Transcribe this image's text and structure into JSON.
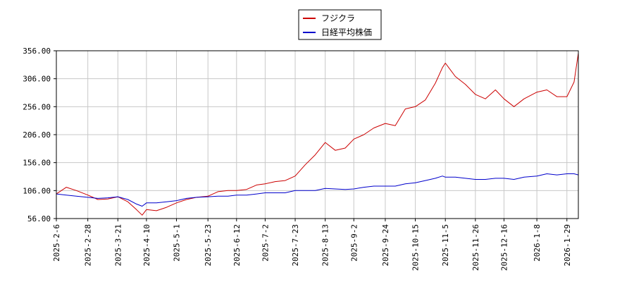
{
  "chart_data": {
    "type": "line",
    "title": "",
    "xlabel": "",
    "ylabel": "",
    "grid": true,
    "legend_position": "top-center",
    "x_ticks": [
      "2025-2-6",
      "2025-2-28",
      "2025-3-21",
      "2025-4-10",
      "2025-5-1",
      "2025-5-23",
      "2025-6-12",
      "2025-7-2",
      "2025-7-23",
      "2025-8-13",
      "2025-9-2",
      "2025-9-24",
      "2025-10-15",
      "2025-11-5",
      "2025-11-26",
      "2025-12-16",
      "2026-1-8",
      "2026-1-29"
    ],
    "y_ticks": [
      "356.00",
      "306.00",
      "256.00",
      "206.00",
      "156.00",
      "106.00",
      "56.00"
    ],
    "ylim": [
      56,
      356
    ],
    "x": [
      "2025-2-6",
      "2025-2-13",
      "2025-2-20",
      "2025-2-28",
      "2025-3-7",
      "2025-3-14",
      "2025-3-21",
      "2025-3-28",
      "2025-4-3",
      "2025-4-7",
      "2025-4-10",
      "2025-4-17",
      "2025-4-24",
      "2025-5-1",
      "2025-5-8",
      "2025-5-15",
      "2025-5-23",
      "2025-5-30",
      "2025-6-6",
      "2025-6-12",
      "2025-6-19",
      "2025-6-26",
      "2025-7-2",
      "2025-7-9",
      "2025-7-16",
      "2025-7-23",
      "2025-7-30",
      "2025-8-6",
      "2025-8-13",
      "2025-8-20",
      "2025-8-27",
      "2025-9-2",
      "2025-9-9",
      "2025-9-16",
      "2025-9-24",
      "2025-10-1",
      "2025-10-8",
      "2025-10-15",
      "2025-10-22",
      "2025-10-29",
      "2025-11-3",
      "2025-11-5",
      "2025-11-12",
      "2025-11-19",
      "2025-11-26",
      "2025-12-3",
      "2025-12-10",
      "2025-12-16",
      "2025-12-23",
      "2025-12-30",
      "2026-1-8",
      "2026-1-15",
      "2026-1-22",
      "2026-1-29",
      "2026-2-3",
      "2026-2-6"
    ],
    "series": [
      {
        "name": "フジクラ",
        "color": "#cc0000",
        "values": [
          100,
          112,
          106,
          98,
          90,
          91,
          95,
          86,
          72,
          62,
          72,
          70,
          76,
          84,
          90,
          94,
          96,
          104,
          106,
          106,
          108,
          116,
          118,
          122,
          124,
          132,
          152,
          170,
          192,
          178,
          182,
          198,
          206,
          218,
          226,
          222,
          252,
          256,
          268,
          298,
          326,
          334,
          310,
          296,
          278,
          270,
          286,
          270,
          256,
          270,
          282,
          286,
          274,
          274,
          300,
          352
        ]
      },
      {
        "name": "日経平均株価",
        "color": "#0000cc",
        "values": [
          100,
          98,
          96,
          94,
          92,
          93,
          95,
          90,
          82,
          78,
          84,
          84,
          86,
          88,
          92,
          94,
          95,
          96,
          96,
          98,
          98,
          100,
          102,
          102,
          102,
          106,
          106,
          106,
          110,
          109,
          108,
          109,
          112,
          114,
          114,
          114,
          118,
          120,
          124,
          128,
          132,
          130,
          130,
          128,
          126,
          126,
          128,
          128,
          126,
          130,
          132,
          136,
          134,
          136,
          136,
          134
        ]
      }
    ]
  }
}
